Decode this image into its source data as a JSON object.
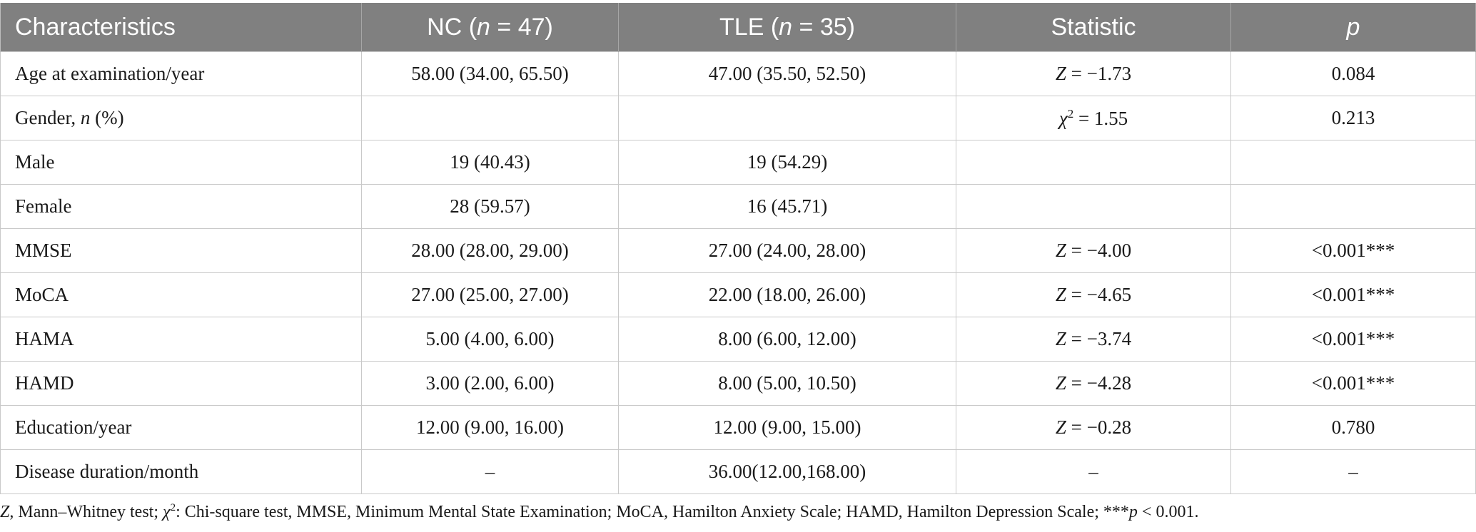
{
  "table": {
    "headers": {
      "characteristics": "Characteristics",
      "nc_prefix": "NC (",
      "nc_n": "n",
      "nc_suffix": " = 47)",
      "tle_prefix": "TLE (",
      "tle_n": "n",
      "tle_suffix": " = 35)",
      "statistic": "Statistic",
      "p": "p"
    },
    "rows": [
      {
        "label": "Age at examination/year",
        "nc": "58.00 (34.00, 65.50)",
        "tle": "47.00 (35.50, 52.50)",
        "stat_symbol": "Z",
        "stat_sup": "",
        "stat_value": " = −1.73",
        "p": "0.084"
      },
      {
        "label_prefix": "Gender, ",
        "label_italic": "n",
        "label_suffix": " (%)",
        "nc": "",
        "tle": "",
        "stat_symbol": "χ",
        "stat_sup": "2",
        "stat_value": " = 1.55",
        "p": "0.213"
      },
      {
        "label": "Male",
        "nc": "19 (40.43)",
        "tle": "19 (54.29)",
        "stat_symbol": "",
        "stat_sup": "",
        "stat_value": "",
        "p": ""
      },
      {
        "label": "Female",
        "nc": "28 (59.57)",
        "tle": "16 (45.71)",
        "stat_symbol": "",
        "stat_sup": "",
        "stat_value": "",
        "p": ""
      },
      {
        "label": "MMSE",
        "nc": "28.00 (28.00, 29.00)",
        "tle": "27.00 (24.00, 28.00)",
        "stat_symbol": "Z",
        "stat_sup": "",
        "stat_value": " = −4.00",
        "p": "<0.001***"
      },
      {
        "label": "MoCA",
        "nc": "27.00 (25.00, 27.00)",
        "tle": "22.00 (18.00, 26.00)",
        "stat_symbol": "Z",
        "stat_sup": "",
        "stat_value": " = −4.65",
        "p": "<0.001***"
      },
      {
        "label": "HAMA",
        "nc": "5.00 (4.00, 6.00)",
        "tle": "8.00 (6.00, 12.00)",
        "stat_symbol": "Z",
        "stat_sup": "",
        "stat_value": " = −3.74",
        "p": "<0.001***"
      },
      {
        "label": "HAMD",
        "nc": "3.00 (2.00, 6.00)",
        "tle": "8.00 (5.00, 10.50)",
        "stat_symbol": "Z",
        "stat_sup": "",
        "stat_value": " = −4.28",
        "p": "<0.001***"
      },
      {
        "label": "Education/year",
        "nc": "12.00 (9.00, 16.00)",
        "tle": "12.00 (9.00, 15.00)",
        "stat_symbol": "Z",
        "stat_sup": "",
        "stat_value": " = −0.28",
        "p": "0.780"
      },
      {
        "label": "Disease duration/month",
        "nc": "–",
        "tle": "36.00(12.00,168.00)",
        "stat_symbol": "",
        "stat_sup": "",
        "stat_value": "–",
        "p": "–"
      }
    ]
  },
  "footnote": {
    "z_symbol": "Z",
    "z_text": ", Mann–Whitney test; ",
    "chi_symbol": "χ",
    "chi_sup": "2",
    "chi_text": ": Chi-square test, MMSE, Minimum Mental State Examination; MoCA, Hamilton Anxiety Scale; HAMD, Hamilton Depression Scale; ***",
    "p_symbol": "p",
    "p_text": " < 0.001."
  }
}
